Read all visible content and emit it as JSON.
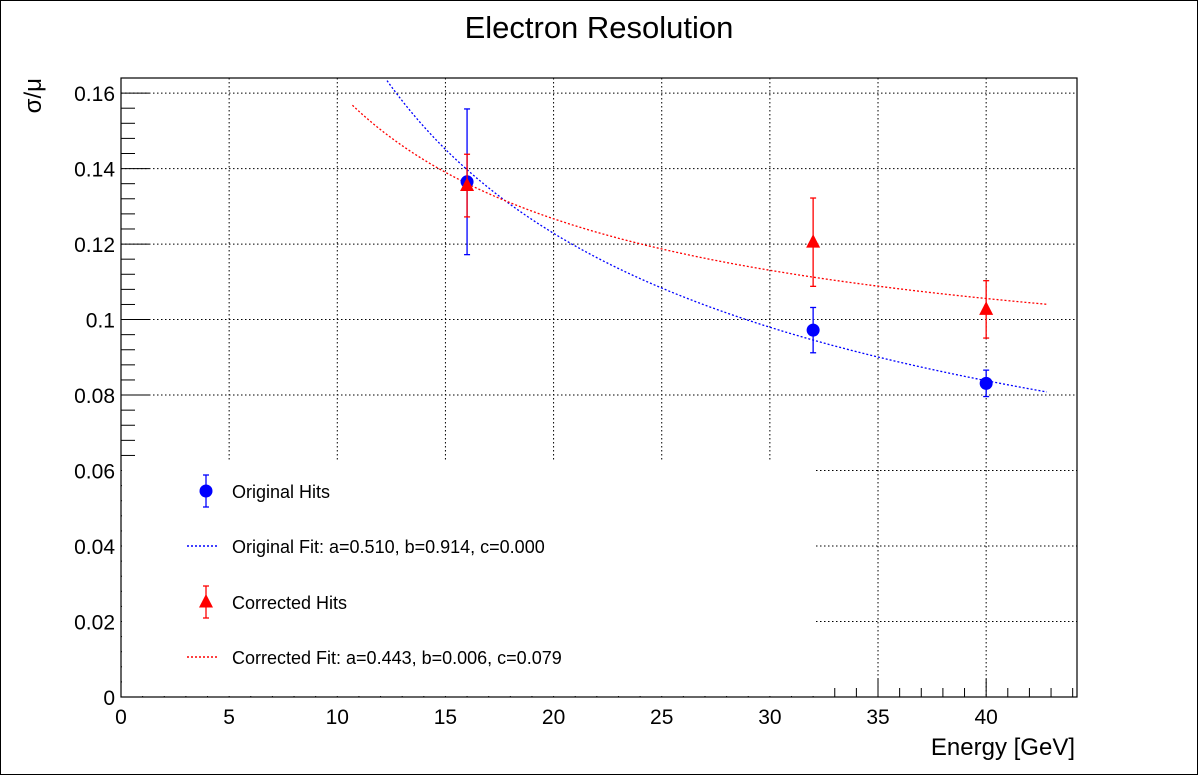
{
  "chart_data": {
    "type": "scatter",
    "title": "Electron Resolution",
    "xlabel": "Energy [GeV]",
    "ylabel": "σ/μ",
    "xlim": [
      0,
      44.2
    ],
    "ylim": [
      0,
      0.164
    ],
    "xticks": [
      0,
      5,
      10,
      15,
      20,
      25,
      30,
      35,
      40
    ],
    "xtick_labels": [
      "0",
      "5",
      "10",
      "15",
      "20",
      "25",
      "30",
      "35",
      "40"
    ],
    "yticks": [
      0,
      0.02,
      0.04,
      0.06,
      0.08,
      0.1,
      0.12,
      0.14,
      0.16
    ],
    "ytick_labels": [
      "0",
      "0.02",
      "0.04",
      "0.06",
      "0.08",
      "0.1",
      "0.12",
      "0.14",
      "0.16"
    ],
    "grid": true,
    "legend_position": "bottom-left",
    "series": [
      {
        "name": "Original Hits",
        "kind": "points",
        "marker": "circle",
        "color": "#0000ff",
        "x": [
          16,
          32,
          40
        ],
        "y": [
          0.1365,
          0.0972,
          0.0831
        ],
        "yerr": [
          0.0193,
          0.006,
          0.0035
        ]
      },
      {
        "name": "Corrected Hits",
        "kind": "points",
        "marker": "triangle",
        "color": "#ff0000",
        "x": [
          16,
          32,
          40
        ],
        "y": [
          0.1355,
          0.1205,
          0.1027
        ],
        "yerr": [
          0.0083,
          0.0117,
          0.0076
        ]
      },
      {
        "name": "Original Fit: a=0.510, b=0.914, c=0.000",
        "kind": "fit",
        "color": "#0000ff",
        "params": {
          "a": 0.51,
          "b": 0.914,
          "c": 0.0
        },
        "xrange": [
          12.3,
          42.8
        ]
      },
      {
        "name": "Corrected Fit: a=0.443, b=0.006, c=0.079",
        "kind": "fit",
        "color": "#ff0000",
        "params": {
          "a": 0.443,
          "b": 0.006,
          "c": 0.079
        },
        "xrange": [
          10.7,
          42.8
        ]
      }
    ],
    "legend": [
      {
        "label": "Original Hits",
        "symbol": "circle",
        "color": "#0000ff"
      },
      {
        "label": "Original Fit: a=0.510, b=0.914, c=0.000",
        "symbol": "dotted-line",
        "color": "#0000ff"
      },
      {
        "label": "Corrected Hits",
        "symbol": "triangle",
        "color": "#ff0000"
      },
      {
        "label": "Corrected Fit: a=0.443, b=0.006, c=0.079",
        "symbol": "dotted-line",
        "color": "#ff0000"
      }
    ]
  }
}
